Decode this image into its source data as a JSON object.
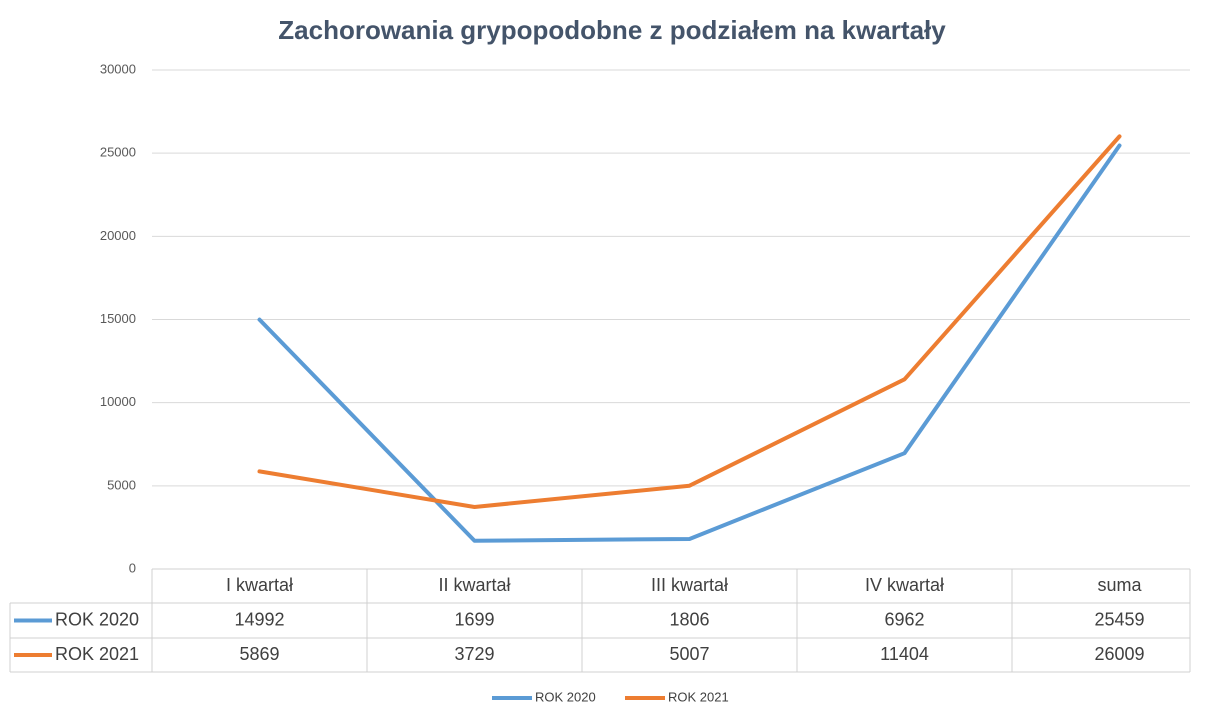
{
  "chart_data": {
    "type": "line",
    "title": "Zachorowania grypopodobne z podziałem na kwartały",
    "categories": [
      "I kwartał",
      "II kwartał",
      "III kwartał",
      "IV kwartał",
      "suma"
    ],
    "series": [
      {
        "name": "ROK 2020",
        "color": "#5b9bd5",
        "values": [
          14992,
          1699,
          1806,
          6962,
          25459
        ]
      },
      {
        "name": "ROK 2021",
        "color": "#ed7d31",
        "values": [
          5869,
          3729,
          5007,
          11404,
          26009
        ]
      }
    ],
    "ylim": [
      0,
      30000
    ],
    "yticks": [
      0,
      5000,
      10000,
      15000,
      20000,
      25000,
      30000
    ],
    "grid": true,
    "legend": "bottom"
  }
}
